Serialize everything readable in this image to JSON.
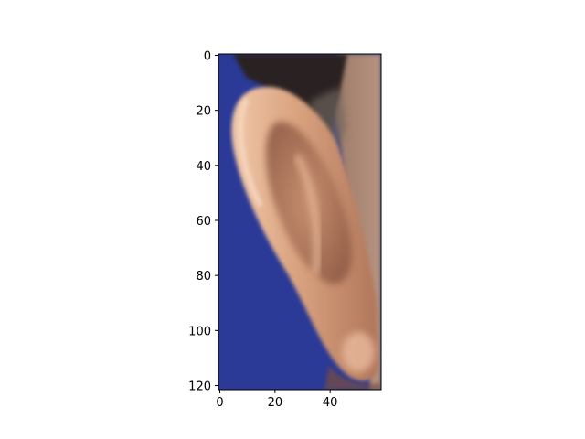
{
  "figure": {
    "kind": "image-display",
    "image_subject": "ear-photo",
    "image_size": {
      "width": 59,
      "height": 122
    }
  },
  "axes": {
    "x": {
      "ticks": [
        0,
        20,
        40
      ],
      "tick_labels": [
        "0",
        "20",
        "40"
      ],
      "range": [
        -0.5,
        58.5
      ]
    },
    "y": {
      "ticks": [
        0,
        20,
        40,
        60,
        80,
        100,
        120
      ],
      "tick_labels": [
        "0",
        "20",
        "40",
        "60",
        "80",
        "100",
        "120"
      ],
      "range": [
        121.5,
        -0.5
      ],
      "inverted": true
    }
  },
  "colors": {
    "background": "#2b3a96",
    "skin_light": "#e8bfa0",
    "skin_mid": "#c98e6e",
    "skin_shadow": "#8f5a45",
    "hair": "#2a2320",
    "axis": "#000000"
  }
}
